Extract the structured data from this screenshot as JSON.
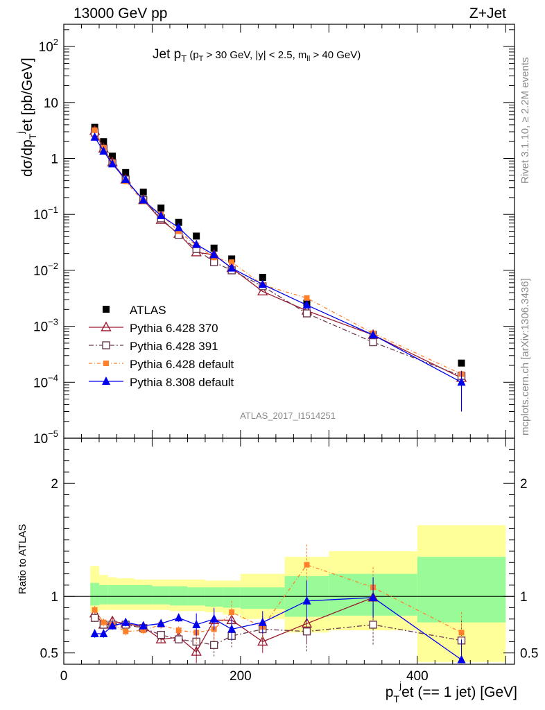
{
  "header": {
    "left": "13000 GeV pp",
    "right": "Z+Jet"
  },
  "side_labels": {
    "rivet": "Rivet 3.1.10, ≥ 2.2M events",
    "mcplots": "mcplots.cern.ch [arXiv:1306.3436]"
  },
  "analysis_id": "ATLAS_2017_I1514251",
  "colors": {
    "atlas": "#000000",
    "p370": "#9b1b30",
    "p391": "#6b3a4f",
    "p6def": "#ff7f2a",
    "p8def": "#0000ee",
    "band_inner": "#98fb98",
    "band_outer": "#ffff99"
  },
  "chart_data": [
    {
      "type": "scatter",
      "title": "Jet pT (pT > 30 GeV, |y| < 2.5, mll > 40 GeV)",
      "ylabel": "dσ/dp_T^j et [pb/GeV]",
      "yscale": "log",
      "ylim": [
        1e-05,
        250
      ],
      "xlim": [
        0,
        510
      ],
      "ytick_labels": [
        "10^-5",
        "10^-4",
        "10^-3",
        "10^-2",
        "10^-1",
        "1",
        "10",
        "10^2"
      ],
      "legend_position": "left-middle",
      "series": [
        {
          "name": "ATLAS",
          "marker": "square",
          "x": [
            35,
            45,
            55,
            70,
            90,
            110,
            130,
            150,
            170,
            190,
            225,
            275,
            350,
            450
          ],
          "y": [
            3.6,
            2.0,
            1.1,
            0.56,
            0.25,
            0.13,
            0.072,
            0.041,
            0.025,
            0.016,
            0.0075,
            0.0026,
            0.00072,
            0.00022
          ]
        },
        {
          "name": "Pythia 6.428 370",
          "marker": "triangle-open",
          "x": [
            35,
            45,
            55,
            70,
            90,
            110,
            130,
            150,
            170,
            190,
            225,
            275,
            350,
            450
          ],
          "y": [
            3.1,
            1.5,
            0.85,
            0.42,
            0.18,
            0.08,
            0.045,
            0.021,
            0.019,
            0.011,
            0.0042,
            0.0019,
            0.0007,
            0.00012
          ]
        },
        {
          "name": "Pythia 6.428 391",
          "marker": "square-open",
          "x": [
            35,
            45,
            55,
            70,
            90,
            110,
            130,
            150,
            170,
            190,
            225,
            275,
            350,
            450
          ],
          "y": [
            2.9,
            1.5,
            0.83,
            0.42,
            0.18,
            0.085,
            0.043,
            0.024,
            0.014,
            0.01,
            0.0052,
            0.0017,
            0.00052,
            0.00013
          ]
        },
        {
          "name": "Pythia 6.428 default",
          "marker": "square-small",
          "x": [
            35,
            45,
            55,
            70,
            90,
            110,
            130,
            150,
            170,
            190,
            225,
            275,
            350,
            450
          ],
          "y": [
            3.2,
            1.55,
            0.85,
            0.39,
            0.17,
            0.1,
            0.05,
            0.028,
            0.017,
            0.014,
            0.0055,
            0.0032,
            0.00075,
            0.00014
          ]
        },
        {
          "name": "Pythia 8.308 default",
          "marker": "triangle",
          "x": [
            35,
            45,
            55,
            70,
            90,
            110,
            130,
            150,
            170,
            190,
            225,
            275,
            350,
            450
          ],
          "y": [
            2.4,
            1.35,
            0.8,
            0.42,
            0.18,
            0.095,
            0.058,
            0.029,
            0.019,
            0.011,
            0.0056,
            0.0024,
            0.0007,
            0.0001
          ]
        }
      ]
    },
    {
      "type": "scatter",
      "ylabel": "Ratio to ATLAS",
      "xlabel": "p_T^j et (== 1 jet) [GeV]",
      "xlim": [
        0,
        510
      ],
      "ylim": [
        0.4,
        2.4
      ],
      "xtick_labels": [
        "0",
        "200",
        "400"
      ],
      "ytick_labels": [
        "0.5",
        "1",
        "2"
      ],
      "bins": [
        [
          30,
          40
        ],
        [
          40,
          50
        ],
        [
          50,
          60
        ],
        [
          60,
          80
        ],
        [
          80,
          100
        ],
        [
          100,
          120
        ],
        [
          120,
          140
        ],
        [
          140,
          160
        ],
        [
          160,
          180
        ],
        [
          180,
          200
        ],
        [
          200,
          250
        ],
        [
          250,
          300
        ],
        [
          300,
          400
        ],
        [
          400,
          500
        ]
      ],
      "band_inner": [
        [
          0.92,
          1.12
        ],
        [
          0.93,
          1.1
        ],
        [
          0.93,
          1.1
        ],
        [
          0.93,
          1.1
        ],
        [
          0.93,
          1.1
        ],
        [
          0.93,
          1.09
        ],
        [
          0.92,
          1.09
        ],
        [
          0.92,
          1.08
        ],
        [
          0.91,
          1.08
        ],
        [
          0.9,
          1.08
        ],
        [
          0.89,
          1.08
        ],
        [
          0.82,
          1.18
        ],
        [
          0.83,
          1.2
        ],
        [
          0.77,
          1.35
        ]
      ],
      "band_outer": [
        [
          0.86,
          1.27
        ],
        [
          0.88,
          1.19
        ],
        [
          0.88,
          1.17
        ],
        [
          0.88,
          1.16
        ],
        [
          0.88,
          1.15
        ],
        [
          0.88,
          1.15
        ],
        [
          0.87,
          1.15
        ],
        [
          0.87,
          1.15
        ],
        [
          0.86,
          1.14
        ],
        [
          0.84,
          1.14
        ],
        [
          0.8,
          1.2
        ],
        [
          0.68,
          1.35
        ],
        [
          0.7,
          1.4
        ],
        [
          0.42,
          1.63
        ]
      ],
      "series": [
        {
          "name": "Pythia 6.428 370",
          "x": [
            35,
            45,
            55,
            70,
            90,
            110,
            130,
            150,
            170,
            190,
            225,
            275,
            350
          ],
          "y": [
            0.85,
            0.75,
            0.78,
            0.76,
            0.73,
            0.62,
            0.64,
            0.51,
            0.79,
            0.79,
            0.6,
            0.76,
            0.99
          ]
        },
        {
          "name": "Pythia 6.428 391",
          "x": [
            35,
            45,
            55,
            70,
            90,
            110,
            130,
            150,
            170,
            190,
            225,
            275,
            350,
            450
          ],
          "y": [
            0.81,
            0.75,
            0.75,
            0.75,
            0.72,
            0.66,
            0.62,
            0.6,
            0.57,
            0.65,
            0.71,
            0.69,
            0.75,
            0.61
          ]
        },
        {
          "name": "Pythia 6.428 default",
          "x": [
            35,
            45,
            55,
            70,
            90,
            110,
            130,
            150,
            170,
            190,
            225,
            275,
            350,
            450
          ],
          "y": [
            0.88,
            0.77,
            0.75,
            0.69,
            0.7,
            0.75,
            0.7,
            0.68,
            0.71,
            0.86,
            0.73,
            1.28,
            1.08,
            0.68
          ]
        },
        {
          "name": "Pythia 8.308 default",
          "x": [
            35,
            45,
            55,
            70,
            90,
            110,
            130,
            150,
            170,
            190,
            225,
            275,
            350,
            450
          ],
          "y": [
            0.67,
            0.67,
            0.74,
            0.77,
            0.74,
            0.76,
            0.81,
            0.75,
            0.8,
            0.71,
            0.77,
            0.96,
            0.99,
            0.44
          ]
        }
      ]
    }
  ]
}
